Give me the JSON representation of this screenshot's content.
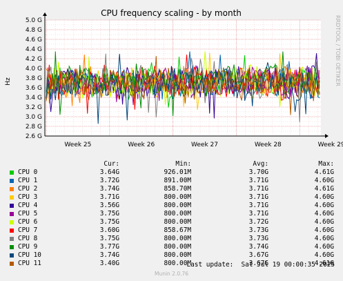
{
  "title": "CPU frequency scaling - by month",
  "side_label": "RRDTOOL / TOBI OETIKER",
  "footer": "Munin 2.0.76",
  "last_update": "Last update:  Sat Jul 19 00:00:35 2025",
  "legend_headers": {
    "cur": "Cur:",
    "min": "Min:",
    "avg": "Avg:",
    "max": "Max:"
  },
  "chart_data": {
    "type": "line",
    "title": "CPU frequency scaling - by month",
    "ylabel": "Hz",
    "ylim": [
      2.6,
      5.0
    ],
    "yticks": [
      2.6,
      2.8,
      3.0,
      3.2,
      3.4,
      3.6,
      3.8,
      4.0,
      4.2,
      4.4,
      4.6,
      4.8,
      5.0
    ],
    "ytick_labels": [
      "2.6 G",
      "2.8 G",
      "3.0 G",
      "3.2 G",
      "3.4 G",
      "3.6 G",
      "3.8 G",
      "4.0 G",
      "4.2 G",
      "4.4 G",
      "4.6 G",
      "4.8 G",
      "5.0 G"
    ],
    "xticks": [
      "Week 25",
      "Week 26",
      "Week 27",
      "Week 28",
      "Week 29"
    ],
    "grid": true,
    "series": [
      {
        "name": "CPU 0",
        "color": "#00cc00",
        "cur": "3.64G",
        "min": "926.01M",
        "avg": "3.70G",
        "max": "4.61G",
        "avg_value": 3.7
      },
      {
        "name": "CPU 1",
        "color": "#0066b3",
        "cur": "3.72G",
        "min": "891.00M",
        "avg": "3.71G",
        "max": "4.60G",
        "avg_value": 3.71
      },
      {
        "name": "CPU 2",
        "color": "#ff8000",
        "cur": "3.74G",
        "min": "858.70M",
        "avg": "3.71G",
        "max": "4.61G",
        "avg_value": 3.71
      },
      {
        "name": "CPU 3",
        "color": "#ffcc00",
        "cur": "3.71G",
        "min": "800.00M",
        "avg": "3.71G",
        "max": "4.60G",
        "avg_value": 3.71
      },
      {
        "name": "CPU 4",
        "color": "#330099",
        "cur": "3.56G",
        "min": "800.00M",
        "avg": "3.71G",
        "max": "4.60G",
        "avg_value": 3.71
      },
      {
        "name": "CPU 5",
        "color": "#990099",
        "cur": "3.75G",
        "min": "800.00M",
        "avg": "3.71G",
        "max": "4.60G",
        "avg_value": 3.71
      },
      {
        "name": "CPU 6",
        "color": "#ccff00",
        "cur": "3.75G",
        "min": "800.00M",
        "avg": "3.72G",
        "max": "4.60G",
        "avg_value": 3.72
      },
      {
        "name": "CPU 7",
        "color": "#ff0000",
        "cur": "3.60G",
        "min": "858.67M",
        "avg": "3.73G",
        "max": "4.60G",
        "avg_value": 3.73
      },
      {
        "name": "CPU 8",
        "color": "#808080",
        "cur": "3.75G",
        "min": "800.00M",
        "avg": "3.73G",
        "max": "4.60G",
        "avg_value": 3.73
      },
      {
        "name": "CPU 9",
        "color": "#008f00",
        "cur": "3.77G",
        "min": "800.00M",
        "avg": "3.74G",
        "max": "4.60G",
        "avg_value": 3.74
      },
      {
        "name": "CPU 10",
        "color": "#00487d",
        "cur": "3.74G",
        "min": "800.00M",
        "avg": "3.67G",
        "max": "4.60G",
        "avg_value": 3.67
      },
      {
        "name": "CPU 11",
        "color": "#b35a00",
        "cur": "3.40G",
        "min": "800.00M",
        "avg": "3.67G",
        "max": "4.61G",
        "avg_value": 3.67
      }
    ]
  }
}
